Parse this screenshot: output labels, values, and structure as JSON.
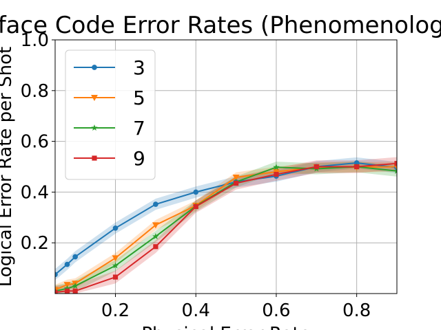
{
  "chart_data": {
    "type": "line",
    "title": "Surface Code Error Rates (Phenomenological)",
    "xlabel": "Physical Error Rate",
    "ylabel": "Logical Error Rate per Shot",
    "xlim": [
      0.05,
      0.9
    ],
    "ylim": [
      0.0,
      1.0
    ],
    "xticks": [
      0.2,
      0.4,
      0.6,
      0.8
    ],
    "yticks": [
      0.2,
      0.4,
      0.6,
      0.8,
      1.0
    ],
    "grid": true,
    "legend_position": "top-left",
    "x": [
      0.05,
      0.08,
      0.1,
      0.2,
      0.3,
      0.4,
      0.5,
      0.6,
      0.7,
      0.8,
      0.9
    ],
    "series": [
      {
        "name": "3",
        "color": "#1f77b4",
        "marker": "circle",
        "values": [
          0.075,
          0.115,
          0.145,
          0.258,
          0.352,
          0.4,
          0.44,
          0.463,
          0.5,
          0.515,
          0.497
        ],
        "band": 0.022
      },
      {
        "name": "5",
        "color": "#ff7f0e",
        "marker": "triangle-down",
        "values": [
          0.015,
          0.035,
          0.04,
          0.14,
          0.27,
          0.347,
          0.458,
          0.48,
          0.498,
          0.498,
          0.5
        ],
        "band": 0.02
      },
      {
        "name": "7",
        "color": "#2ca02c",
        "marker": "star",
        "values": [
          0.01,
          0.02,
          0.03,
          0.11,
          0.225,
          0.345,
          0.44,
          0.498,
          0.492,
          0.5,
          0.483
        ],
        "band": 0.022
      },
      {
        "name": "9",
        "color": "#d62728",
        "marker": "square",
        "values": [
          0.005,
          0.01,
          0.01,
          0.065,
          0.185,
          0.343,
          0.435,
          0.47,
          0.5,
          0.5,
          0.513
        ],
        "band": 0.025
      }
    ]
  }
}
